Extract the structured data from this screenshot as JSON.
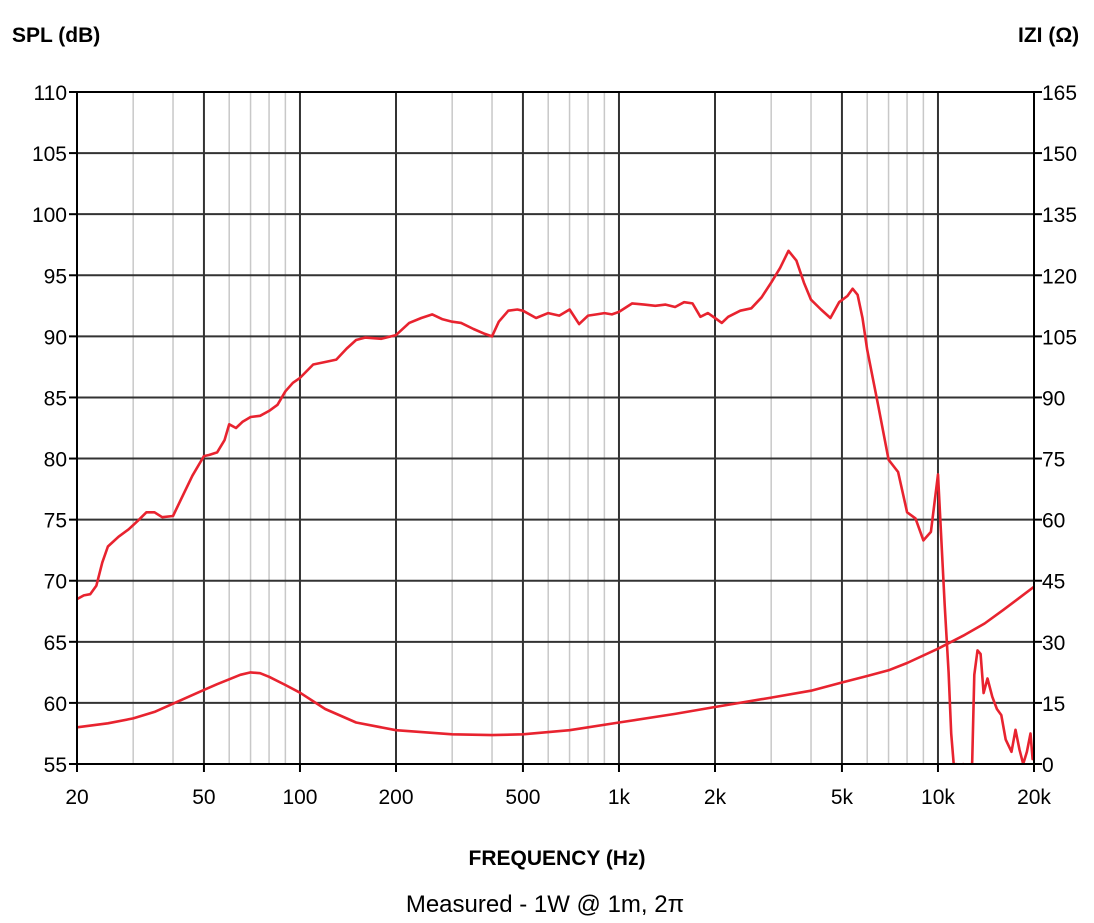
{
  "chart_data": {
    "type": "line",
    "title": "",
    "xlabel": "FREQUENCY (Hz)",
    "ylabel_left": "SPL (dB)",
    "ylabel_right": "IZI (Ω)",
    "caption": "Measured - 1W @ 1m, 2π",
    "x_scale": "log",
    "xlim": [
      20,
      20000
    ],
    "ylim_left": [
      55,
      110
    ],
    "ylim_right": [
      0,
      165
    ],
    "grid": true,
    "x_tick_labels": [
      "20",
      "50",
      "100",
      "200",
      "500",
      "1k",
      "2k",
      "5k",
      "10k",
      "20k"
    ],
    "x_tick_values": [
      20,
      50,
      100,
      200,
      500,
      1000,
      2000,
      5000,
      10000,
      20000
    ],
    "y_left_ticks": [
      110,
      105,
      100,
      95,
      90,
      85,
      80,
      75,
      70,
      65,
      60,
      55
    ],
    "y_right_ticks": [
      165,
      150,
      135,
      120,
      105,
      90,
      75,
      60,
      45,
      30,
      15,
      0
    ],
    "line_color": "#e8232f",
    "series": [
      {
        "axis": "left",
        "x": [
          20,
          21,
          22,
          23,
          24,
          25,
          27,
          29,
          31,
          33,
          35,
          37,
          40,
          43,
          46,
          50,
          52,
          55,
          58,
          60,
          63,
          66,
          70,
          75,
          80,
          85,
          90,
          95,
          100,
          110,
          120,
          130,
          140,
          150,
          160,
          180,
          200,
          220,
          240,
          260,
          280,
          300,
          320,
          350,
          380,
          400,
          420,
          450,
          480,
          500,
          550,
          600,
          650,
          700,
          750,
          800,
          850,
          900,
          950,
          1000,
          1100,
          1200,
          1300,
          1400,
          1500,
          1600,
          1700,
          1800,
          1900,
          2000,
          2100,
          2200,
          2400,
          2600,
          2800,
          3000,
          3200,
          3400,
          3600,
          3800,
          4000,
          4300,
          4600,
          4900,
          5200,
          5400,
          5600,
          5800,
          6000,
          6500,
          7000,
          7500,
          8000,
          8500,
          9000,
          9500,
          10000,
          10500,
          10800,
          11000,
          11200,
          11300,
          11400,
          11500,
          12000,
          12500,
          12800,
          13000,
          13300,
          13600,
          13900,
          14300,
          14800,
          15300,
          15800,
          16300,
          17000,
          17500,
          18000,
          18500,
          19000,
          19500,
          19800
        ],
        "y": [
          68.5,
          68.8,
          68.9,
          69.6,
          71.5,
          72.8,
          73.6,
          74.2,
          74.9,
          75.6,
          75.6,
          75.2,
          75.3,
          77.0,
          78.6,
          80.2,
          80.3,
          80.5,
          81.5,
          82.8,
          82.5,
          83.0,
          83.4,
          83.5,
          83.9,
          84.4,
          85.5,
          86.2,
          86.6,
          87.7,
          87.9,
          88.1,
          89.0,
          89.7,
          89.9,
          89.8,
          90.1,
          91.1,
          91.5,
          91.8,
          91.4,
          91.2,
          91.1,
          90.6,
          90.2,
          90.0,
          91.2,
          92.1,
          92.2,
          92.1,
          91.5,
          91.9,
          91.7,
          92.2,
          91.0,
          91.7,
          91.8,
          91.9,
          91.8,
          92.0,
          92.7,
          92.6,
          92.5,
          92.6,
          92.4,
          92.8,
          92.7,
          91.6,
          91.9,
          91.5,
          91.1,
          91.6,
          92.1,
          92.3,
          93.2,
          94.4,
          95.6,
          97.0,
          96.2,
          94.4,
          93.0,
          92.2,
          91.5,
          92.8,
          93.3,
          93.9,
          93.4,
          91.5,
          88.9,
          84.3,
          79.9,
          78.9,
          75.6,
          75.1,
          73.3,
          74.0,
          78.7,
          68.0,
          62.5,
          57.5,
          55.0,
          53.5,
          55.0,
          51.0,
          55.0,
          50.5,
          55.2,
          62.3,
          64.3,
          64.0,
          60.8,
          62.0,
          60.5,
          59.5,
          59.0,
          57.0,
          56.0,
          57.8,
          56.2,
          55.0,
          56.0,
          57.5,
          55.4
        ]
      },
      {
        "axis": "right",
        "x": [
          20,
          25,
          30,
          35,
          40,
          45,
          50,
          55,
          60,
          65,
          70,
          75,
          80,
          90,
          100,
          120,
          150,
          200,
          300,
          400,
          500,
          700,
          1000,
          1500,
          2000,
          3000,
          4000,
          5000,
          6000,
          7000,
          8000,
          10000,
          12000,
          14000,
          16000,
          18000,
          20000
        ],
        "y": [
          9.0,
          10.0,
          11.2,
          12.8,
          14.8,
          16.6,
          18.2,
          19.6,
          20.8,
          21.9,
          22.5,
          22.3,
          21.4,
          19.4,
          17.5,
          13.5,
          10.2,
          8.3,
          7.3,
          7.1,
          7.3,
          8.3,
          10.2,
          12.3,
          14.0,
          16.3,
          18.0,
          20.0,
          21.6,
          23.0,
          24.8,
          28.3,
          31.5,
          34.5,
          37.8,
          40.8,
          43.5
        ]
      }
    ]
  }
}
